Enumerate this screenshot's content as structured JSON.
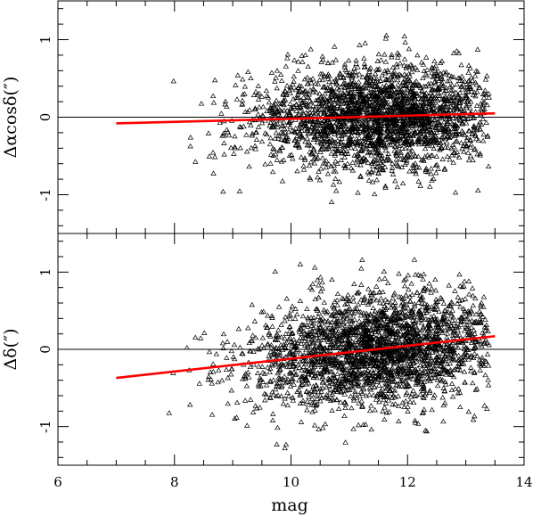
{
  "chart_data": {
    "type": "scatter",
    "xlabel": "mag",
    "xlim": [
      6,
      14
    ],
    "xticks": [
      6,
      8,
      10,
      12,
      14
    ],
    "fit_color": "#ff0000",
    "point_color": "#000000",
    "marker": "open-triangle",
    "panels": [
      {
        "ylabel": "Δαcosδ(″)",
        "ylim": [
          -1.5,
          1.5
        ],
        "yticks": [
          -1,
          0,
          1
        ],
        "zero_line": true,
        "fit_line": {
          "x": [
            7.0,
            13.5
          ],
          "y": [
            -0.08,
            0.05
          ]
        },
        "scatter_model": {
          "n_points": 2600,
          "x_center": 11.5,
          "x_sigma": 1.0,
          "x_min": 7.7,
          "x_max": 13.4,
          "y_sigma": 0.33,
          "y_clip": [
            -1.45,
            1.45
          ]
        }
      },
      {
        "ylabel": "Δδ(″)",
        "ylim": [
          -1.5,
          1.5
        ],
        "yticks": [
          -1,
          0,
          1
        ],
        "zero_line": true,
        "fit_line": {
          "x": [
            7.0,
            13.5
          ],
          "y": [
            -0.37,
            0.17
          ]
        },
        "scatter_model": {
          "n_points": 2600,
          "x_center": 11.5,
          "x_sigma": 1.0,
          "x_min": 7.7,
          "x_max": 13.4,
          "y_sigma": 0.36,
          "y_clip": [
            -1.45,
            1.45
          ]
        }
      }
    ]
  }
}
